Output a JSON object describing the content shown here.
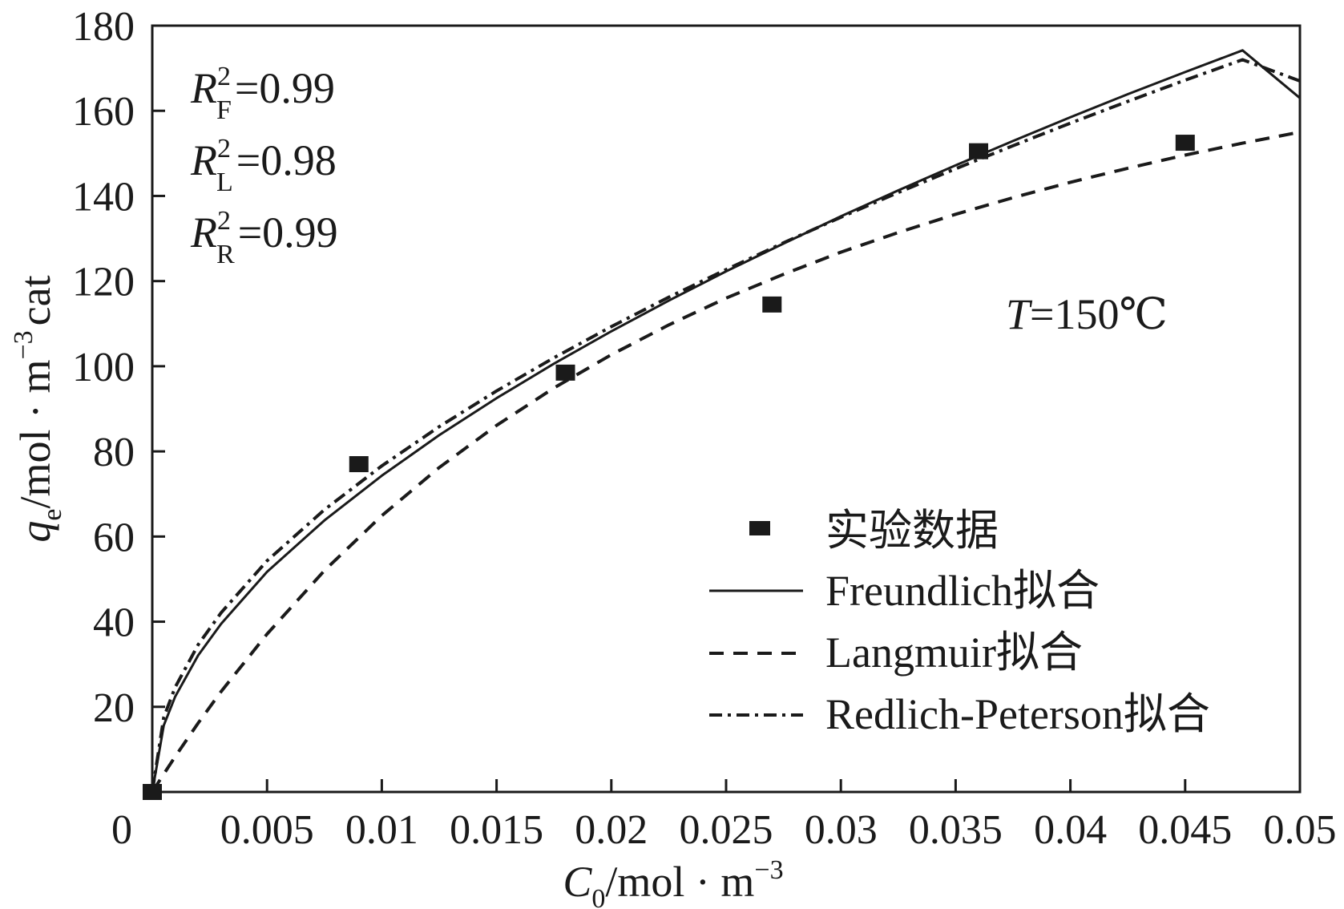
{
  "chart_data": {
    "type": "scatter",
    "xlim": [
      0,
      0.05
    ],
    "ylim": [
      0,
      180
    ],
    "x_ticks": [
      0,
      0.005,
      0.01,
      0.015,
      0.02,
      0.025,
      0.03,
      0.035,
      0.04,
      0.045,
      0.05
    ],
    "x_tick_labels": [
      "0",
      "0.005",
      "0.01",
      "0.015",
      "0.02",
      "0.025",
      "0.03",
      "0.035",
      "0.04",
      "0.045",
      "0.05"
    ],
    "y_ticks": [
      20,
      40,
      60,
      80,
      100,
      120,
      140,
      160,
      180
    ],
    "y_tick_labels": [
      "20",
      "40",
      "60",
      "80",
      "100",
      "120",
      "140",
      "160",
      "180"
    ],
    "xlabel": {
      "main": "C",
      "sub": "0",
      "rest": "/mol · m",
      "sup": "−3"
    },
    "ylabel": {
      "main": "q",
      "sub": "e",
      "rest": "/mol · m",
      "sup": "−3",
      "tail": "cat"
    },
    "annotations": {
      "r2": [
        {
          "sym": "R",
          "sup": "2",
          "sub": "F",
          "value": "=0.99"
        },
        {
          "sym": "R",
          "sup": "2",
          "sub": "L",
          "value": "=0.98"
        },
        {
          "sym": "R",
          "sup": "2",
          "sub": "R",
          "value": "=0.99"
        }
      ],
      "temperature": {
        "sym": "T",
        "value": "=150℃"
      }
    },
    "legend_position": "bottom-right",
    "series": [
      {
        "name": "实验数据",
        "kind": "points",
        "color": "#1a1a1a",
        "x": [
          0.0,
          0.009,
          0.018,
          0.027,
          0.036,
          0.045
        ],
        "y": [
          0.0,
          77,
          98.5,
          114.5,
          150.5,
          152.5
        ]
      },
      {
        "name": "Freundlich拟合",
        "kind": "line",
        "style": "solid",
        "color": "#1a1a1a",
        "x": [
          0.0,
          0.0005,
          0.001,
          0.002,
          0.003,
          0.005,
          0.0075,
          0.01,
          0.0125,
          0.015,
          0.0175,
          0.02,
          0.0225,
          0.025,
          0.0275,
          0.03,
          0.0325,
          0.035,
          0.0375,
          0.04,
          0.0425,
          0.045,
          0.0475,
          0.05
        ],
        "y": [
          0.0,
          15.6,
          22.4,
          32.1,
          39.5,
          51.7,
          63.8,
          74.3,
          83.8,
          92.5,
          100.6,
          108.2,
          115.4,
          122.3,
          128.8,
          135.2,
          141.3,
          147.2,
          152.9,
          158.5,
          163.9,
          169.1,
          174.2,
          163.0
        ]
      },
      {
        "name": "Langmuir拟合",
        "kind": "line",
        "style": "dashed",
        "color": "#1a1a1a",
        "x": [
          0.0,
          0.0005,
          0.001,
          0.002,
          0.003,
          0.005,
          0.0075,
          0.01,
          0.0125,
          0.015,
          0.0175,
          0.02,
          0.0225,
          0.025,
          0.0275,
          0.03,
          0.0325,
          0.035,
          0.0375,
          0.04,
          0.0425,
          0.045,
          0.0475,
          0.05
        ],
        "y": [
          0.0,
          4.2,
          8.3,
          16.2,
          23.6,
          37.1,
          52.0,
          64.9,
          76.2,
          86.1,
          94.9,
          102.7,
          109.7,
          116.0,
          121.6,
          126.8,
          131.4,
          135.7,
          139.6,
          143.2,
          146.5,
          149.6,
          152.4,
          155.0
        ]
      },
      {
        "name": "Redlich-Peterson拟合",
        "kind": "line",
        "style": "dashdot",
        "color": "#1a1a1a",
        "x": [
          0.0,
          0.0005,
          0.001,
          0.002,
          0.003,
          0.005,
          0.0075,
          0.01,
          0.0125,
          0.015,
          0.0175,
          0.02,
          0.0225,
          0.025,
          0.0275,
          0.03,
          0.0325,
          0.035,
          0.0375,
          0.04,
          0.0425,
          0.045,
          0.0475,
          0.05
        ],
        "y": [
          0.0,
          17.5,
          24.6,
          34.6,
          42.1,
          54.3,
          66.3,
          76.6,
          85.8,
          94.2,
          102.0,
          109.3,
          116.2,
          122.7,
          129.0,
          135.0,
          140.8,
          146.4,
          151.8,
          157.1,
          162.2,
          167.2,
          172.0,
          167.0
        ]
      }
    ]
  }
}
